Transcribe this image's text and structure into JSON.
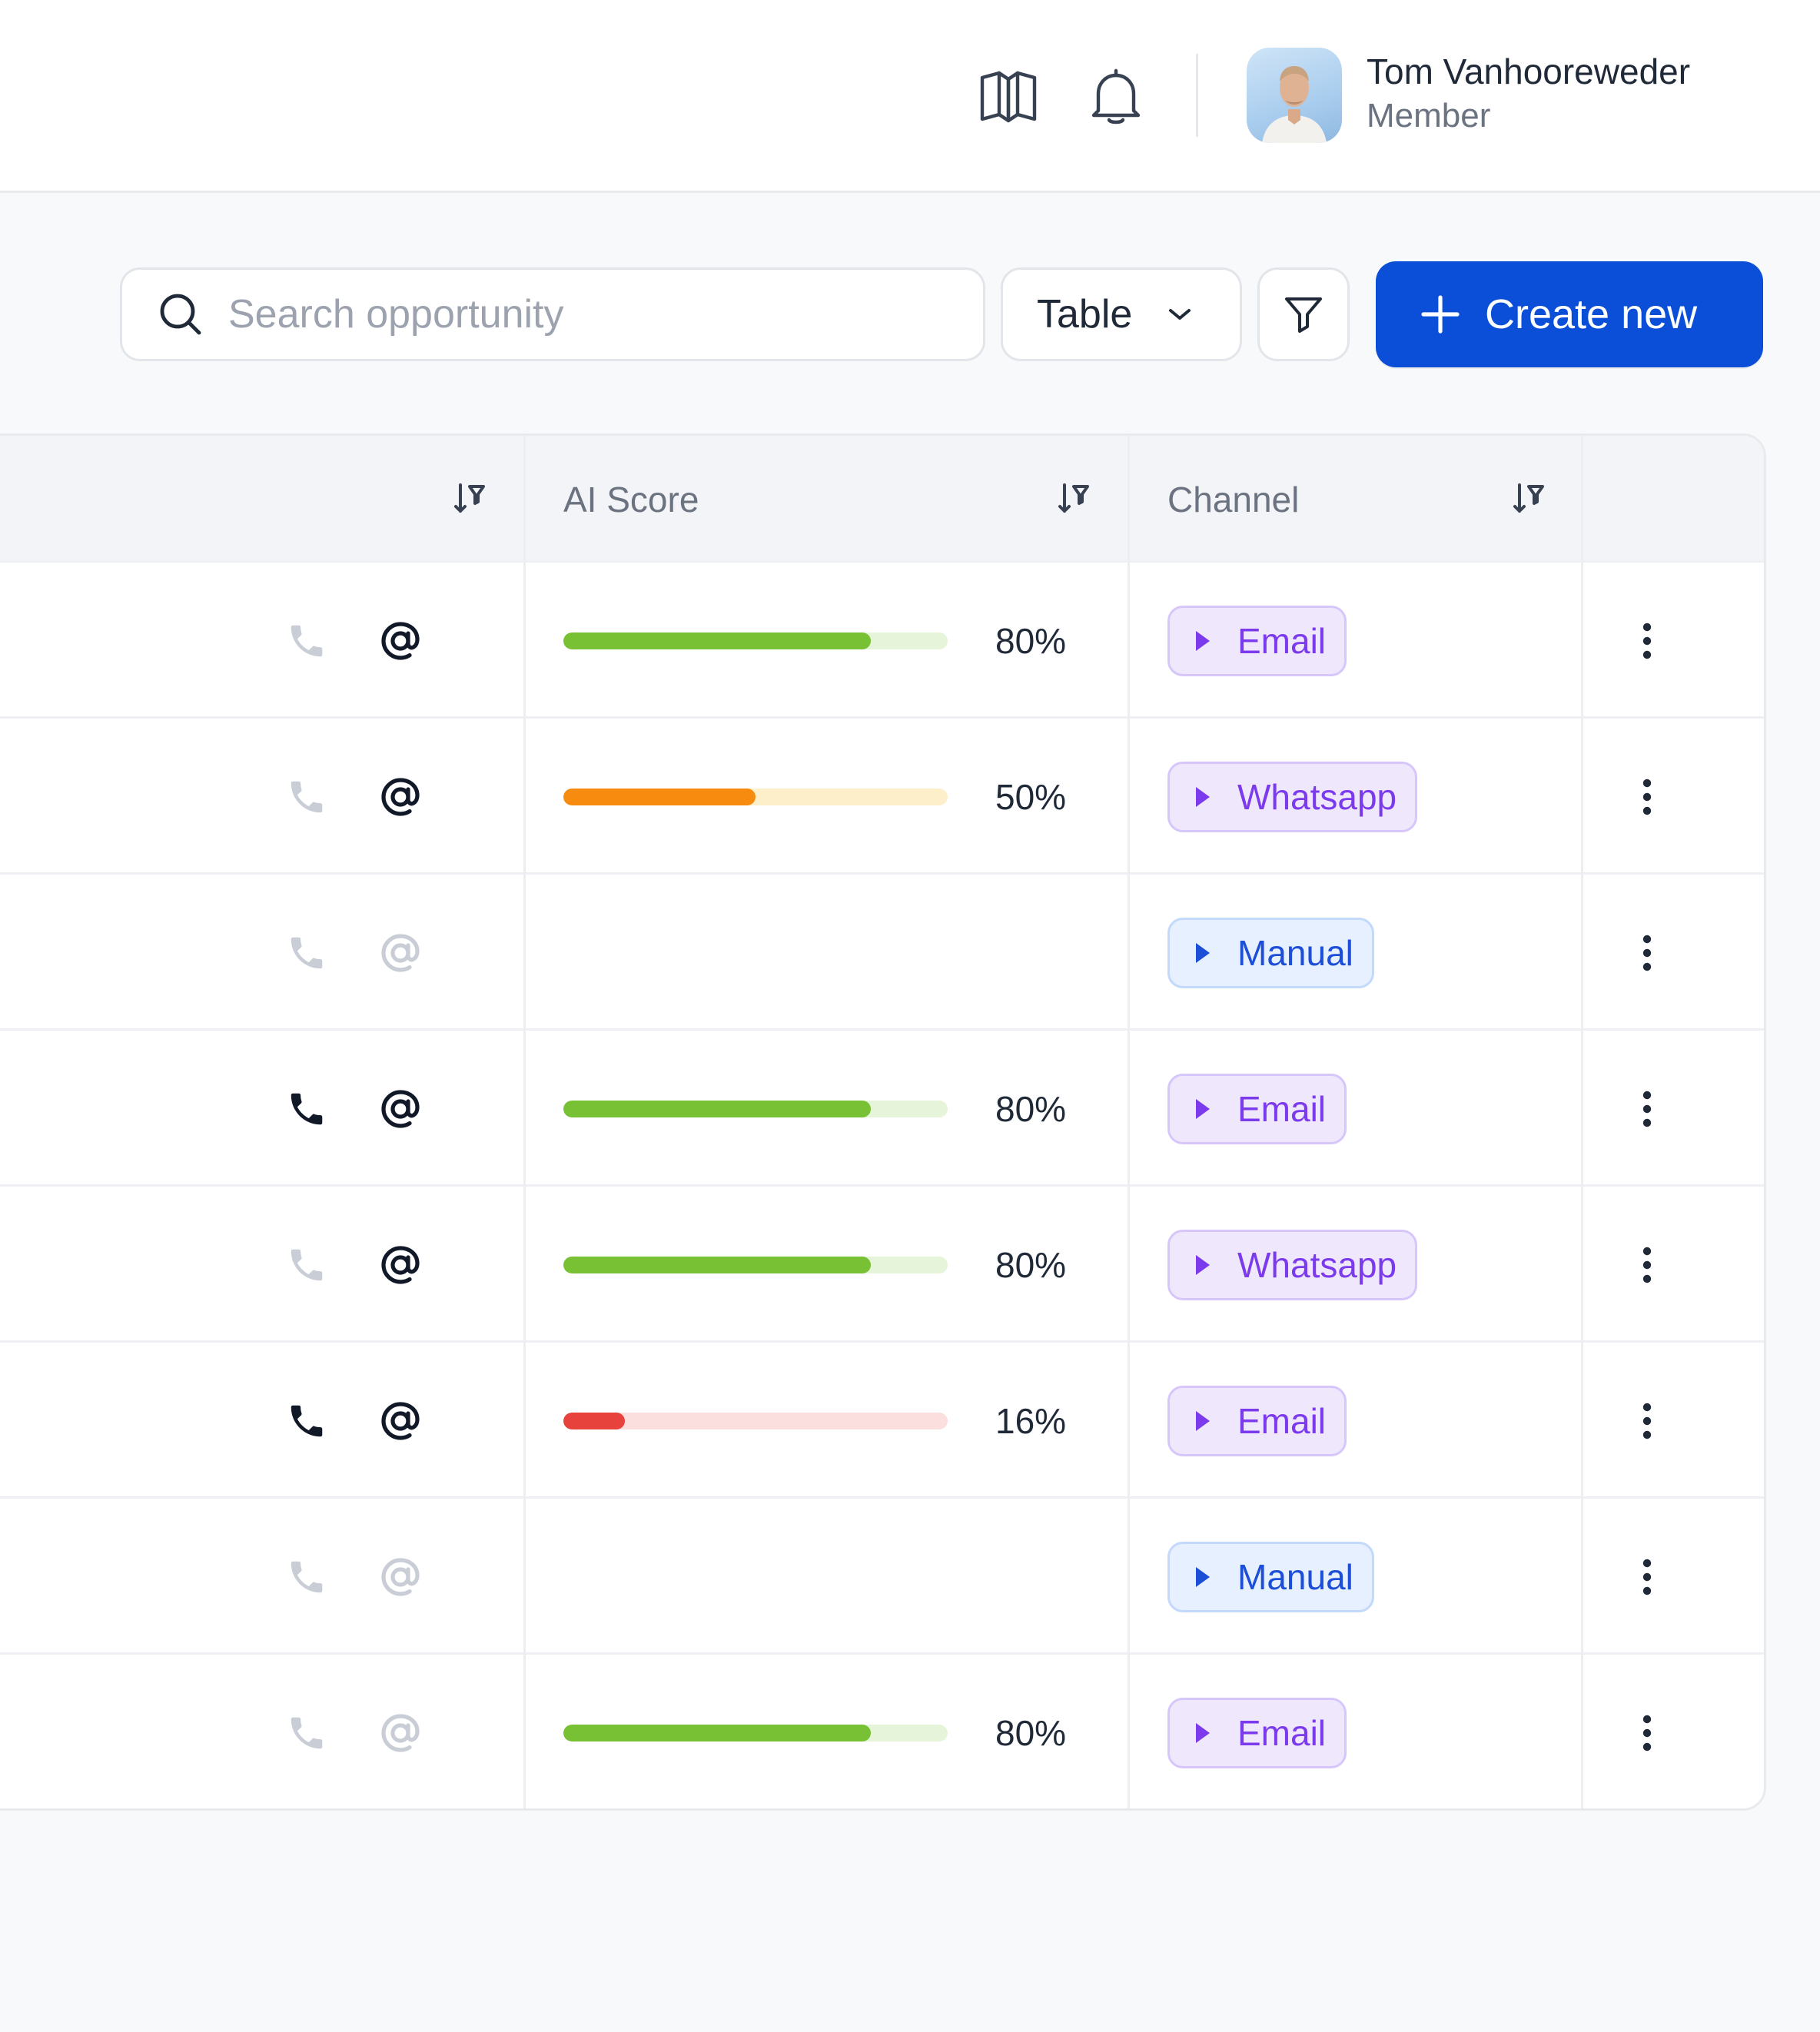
{
  "header": {
    "user": {
      "name": "Tom Vanhooreweder",
      "role": "Member"
    }
  },
  "toolbar": {
    "search_placeholder": "Search opportunity",
    "view_select": "Table",
    "create_label": "Create new"
  },
  "table": {
    "columns": [
      "",
      "AI Score",
      "Channel"
    ],
    "rows": [
      {
        "phone": "inactive",
        "email": "active",
        "score": 0.8,
        "score_label": "80%",
        "score_color": "green",
        "channel": "Email"
      },
      {
        "phone": "inactive",
        "email": "active",
        "score": 0.5,
        "score_label": "50%",
        "score_color": "orange",
        "channel": "Whatsapp"
      },
      {
        "phone": "inactive",
        "email": "inactive",
        "score": null,
        "score_label": "",
        "score_color": null,
        "channel": "Manual"
      },
      {
        "phone": "active",
        "email": "active",
        "score": 0.8,
        "score_label": "80%",
        "score_color": "green",
        "channel": "Email"
      },
      {
        "phone": "inactive",
        "email": "active",
        "score": 0.8,
        "score_label": "80%",
        "score_color": "green",
        "channel": "Whatsapp"
      },
      {
        "phone": "active",
        "email": "active",
        "score": 0.16,
        "score_label": "16%",
        "score_color": "red",
        "channel": "Email"
      },
      {
        "phone": "inactive",
        "email": "inactive",
        "score": null,
        "score_label": "",
        "score_color": null,
        "channel": "Manual"
      },
      {
        "phone": "inactive",
        "email": "inactive",
        "score": 0.8,
        "score_label": "80%",
        "score_color": "green",
        "channel": "Email"
      }
    ]
  },
  "colors": {
    "primary": "#0b4fd9",
    "score_green": "#78c135",
    "score_green_track": "#e6f4d9",
    "score_orange": "#f68b0f",
    "score_orange_track": "#fdefc9",
    "score_red": "#e8423d",
    "score_red_track": "#fbdede",
    "chip_purple_bg": "#efe8fd",
    "chip_purple_border": "#d6c6fa",
    "chip_purple_text": "#7c3aed",
    "chip_blue_bg": "#e6f0fe",
    "chip_blue_border": "#c3d9fb",
    "chip_blue_text": "#1d4ed8",
    "icon_active": "#111827",
    "icon_inactive": "#c9ced6"
  },
  "icons": {
    "header": [
      "book-open-icon",
      "bell-icon"
    ],
    "search": "search-icon",
    "select": "chevron-down-icon",
    "filter": "filter-icon",
    "create": "plus-icon",
    "sort": "sort-icon",
    "row_contact": [
      "phone-icon",
      "at-sign-icon"
    ],
    "row_menu": "more-vertical-icon"
  }
}
